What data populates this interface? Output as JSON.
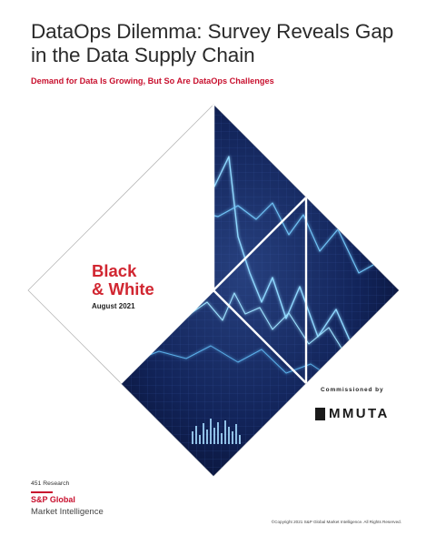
{
  "title": "DataOps Dilemma: Survey Reveals Gap in the Data Supply Chain",
  "subtitle": "Demand for Data Is Growing, But So Are DataOps Challenges",
  "cover": {
    "series_name_line1": "Black",
    "series_name_line2": "& White",
    "date": "August 2021"
  },
  "sponsor": {
    "commissioned_label": "Commissioned by",
    "logo_text": "MMUTA"
  },
  "footer": {
    "research_label": "451 Research",
    "brand_line1": "S&P Global",
    "brand_line2": "Market Intelligence",
    "copyright": "©Copyright 2021 S&P Global Market Intelligence. All Rights Reserved."
  },
  "colors": {
    "accent_red": "#c8102e",
    "panel_dark": "#0b1740",
    "panel_line": "#7ed0ff"
  }
}
